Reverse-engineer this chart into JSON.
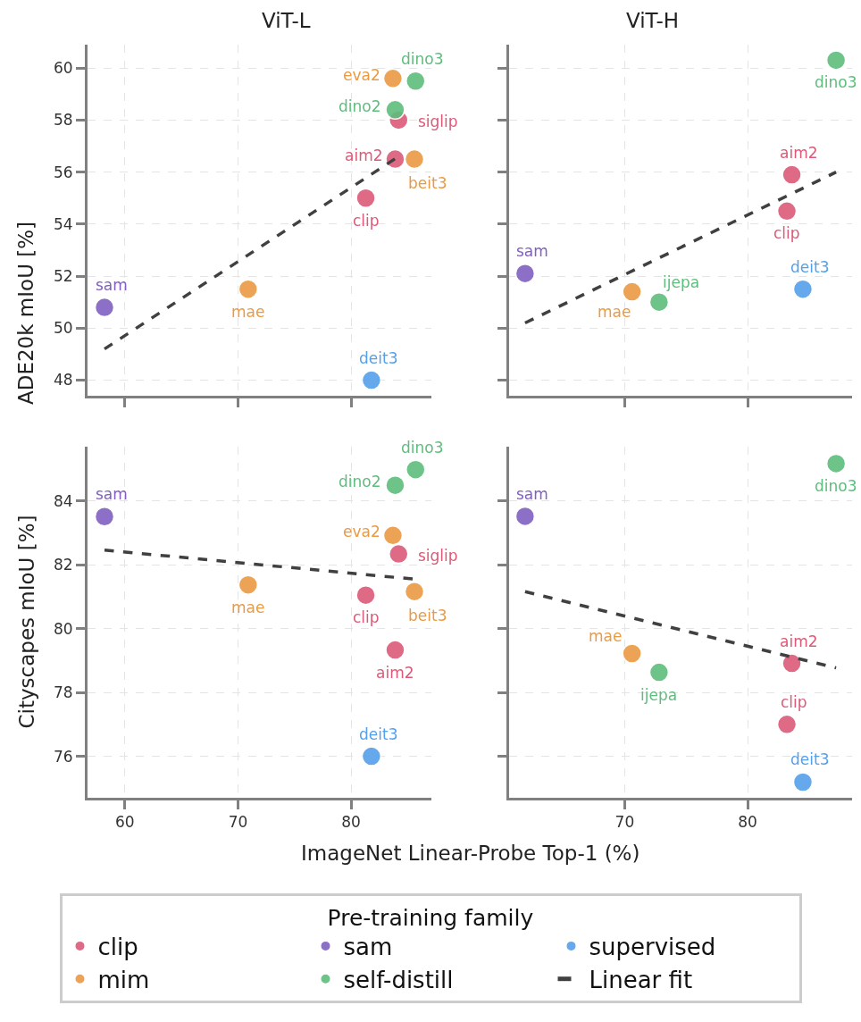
{
  "chart_data": [
    {
      "type": "scatter",
      "title": "ViT-L",
      "ylabel": "ADE20k mIoU [%]",
      "legend_title": "Pre-training family",
      "legend": "bottom",
      "grid": true,
      "marker": "circle",
      "tick_labels": "y",
      "xlim": [
        56.7,
        87.1
      ],
      "xticks": [
        60,
        70,
        80
      ],
      "ylim": [
        47.4,
        60.9
      ],
      "yticks": [
        48,
        50,
        52,
        54,
        56,
        58,
        60
      ],
      "series": [
        {
          "name": "clip",
          "color": "#dc5a78",
          "x": [
            81.3,
            83.9,
            84.2
          ],
          "values": [
            55.0,
            56.5,
            58.0
          ]
        },
        {
          "name": "mim",
          "color": "#eb9a44",
          "x": [
            70.9,
            85.6,
            83.7
          ],
          "values": [
            51.5,
            56.5,
            59.6
          ]
        },
        {
          "name": "sam",
          "color": "#8060c0",
          "x": [
            58.2
          ],
          "values": [
            50.8
          ]
        },
        {
          "name": "self-distill",
          "color": "#5fbd7d",
          "x": [
            83.9,
            85.7
          ],
          "values": [
            58.4,
            59.5
          ]
        },
        {
          "name": "supervised",
          "color": "#55a0ea",
          "x": [
            81.8
          ],
          "values": [
            48.0
          ]
        },
        {
          "name": "Linear fit",
          "type": "line",
          "line_style": "dashed",
          "marker": "none",
          "color": "#404040",
          "x": [
            58.2,
            84.2
          ],
          "values": [
            49.2,
            56.6
          ]
        }
      ],
      "annotations": [
        {
          "text": "clip",
          "x": 81.3,
          "y": 55.0
        },
        {
          "text": "aim2",
          "x": 83.9,
          "y": 56.5
        },
        {
          "text": "siglip",
          "x": 84.2,
          "y": 58.0
        },
        {
          "text": "mae",
          "x": 70.9,
          "y": 51.5
        },
        {
          "text": "beit3",
          "x": 85.6,
          "y": 56.5
        },
        {
          "text": "eva2",
          "x": 83.7,
          "y": 59.6
        },
        {
          "text": "sam",
          "x": 58.2,
          "y": 50.8
        },
        {
          "text": "dino2",
          "x": 83.9,
          "y": 58.4
        },
        {
          "text": "dino3",
          "x": 85.7,
          "y": 59.5
        },
        {
          "text": "deit3",
          "x": 81.8,
          "y": 48.0
        }
      ]
    },
    {
      "type": "scatter",
      "title": "ViT-H",
      "grid": true,
      "marker": "circle",
      "tick_labels": false,
      "xlim": [
        60.6,
        88.5
      ],
      "xticks": [
        70,
        80
      ],
      "ylim": [
        47.4,
        60.9
      ],
      "yticks": [
        48,
        50,
        52,
        54,
        56,
        58,
        60
      ],
      "series": [
        {
          "color": "#dc5a78",
          "x": [
            83.2,
            83.6
          ],
          "values": [
            54.5,
            55.9
          ]
        },
        {
          "color": "#eb9a44",
          "x": [
            70.6
          ],
          "values": [
            51.4
          ]
        },
        {
          "color": "#8060c0",
          "x": [
            61.9
          ],
          "values": [
            52.1
          ]
        },
        {
          "color": "#5fbd7d",
          "x": [
            72.8,
            87.2
          ],
          "values": [
            51.0,
            60.3
          ]
        },
        {
          "color": "#55a0ea",
          "x": [
            84.5
          ],
          "values": [
            51.5
          ]
        },
        {
          "type": "line",
          "line_style": "dashed",
          "marker": "none",
          "color": "#404040",
          "x": [
            61.9,
            87.2
          ],
          "values": [
            50.2,
            56.0
          ]
        }
      ],
      "annotations": [
        {
          "text": "clip",
          "x": 83.2,
          "y": 54.5
        },
        {
          "text": "aim2",
          "x": 83.6,
          "y": 55.9
        },
        {
          "text": "mae",
          "x": 70.6,
          "y": 51.4
        },
        {
          "text": "sam",
          "x": 61.9,
          "y": 52.1
        },
        {
          "text": "ijepa",
          "x": 72.8,
          "y": 51.0
        },
        {
          "text": "dino3",
          "x": 87.2,
          "y": 60.3
        },
        {
          "text": "deit3",
          "x": 84.5,
          "y": 51.5
        }
      ]
    },
    {
      "type": "scatter",
      "ylabel": "Cityscapes mIoU [%]",
      "xlabel": "ImageNet Linear-Probe Top-1 (%)",
      "grid": true,
      "marker": "circle",
      "xlim": [
        56.7,
        87.1
      ],
      "xticks": [
        60,
        70,
        80
      ],
      "ylim": [
        74.7,
        85.7
      ],
      "yticks": [
        76,
        78,
        80,
        82,
        84
      ],
      "series": [
        {
          "color": "#dc5a78",
          "x": [
            81.3,
            83.9,
            84.2
          ],
          "values": [
            81.05,
            79.33,
            82.34
          ]
        },
        {
          "color": "#eb9a44",
          "x": [
            70.9,
            85.6,
            83.7
          ],
          "values": [
            81.37,
            81.16,
            82.92
          ]
        },
        {
          "color": "#8060c0",
          "x": [
            58.2
          ],
          "values": [
            83.51
          ]
        },
        {
          "color": "#5fbd7d",
          "x": [
            83.9,
            85.7
          ],
          "values": [
            84.49,
            84.98
          ]
        },
        {
          "color": "#55a0ea",
          "x": [
            81.8
          ],
          "values": [
            76.0
          ]
        },
        {
          "type": "line",
          "line_style": "dashed",
          "marker": "none",
          "color": "#404040",
          "x": [
            58.2,
            85.6
          ],
          "values": [
            82.46,
            81.55
          ]
        }
      ],
      "annotations": [
        {
          "text": "clip",
          "x": 81.3,
          "y": 81.05
        },
        {
          "text": "aim2",
          "x": 83.9,
          "y": 79.33
        },
        {
          "text": "siglip",
          "x": 84.2,
          "y": 82.34
        },
        {
          "text": "mae",
          "x": 70.9,
          "y": 81.37
        },
        {
          "text": "beit3",
          "x": 85.6,
          "y": 81.16
        },
        {
          "text": "eva2",
          "x": 83.7,
          "y": 82.92
        },
        {
          "text": "sam",
          "x": 58.2,
          "y": 83.51
        },
        {
          "text": "dino2",
          "x": 83.9,
          "y": 84.49
        },
        {
          "text": "dino3",
          "x": 85.7,
          "y": 84.98
        },
        {
          "text": "deit3",
          "x": 81.8,
          "y": 76.0
        }
      ]
    },
    {
      "type": "scatter",
      "grid": true,
      "marker": "circle",
      "tick_labels": "x",
      "xlim": [
        60.6,
        88.5
      ],
      "xticks": [
        70,
        80
      ],
      "ylim": [
        74.7,
        85.7
      ],
      "yticks": [
        76,
        78,
        80,
        82,
        84
      ],
      "series": [
        {
          "color": "#dc5a78",
          "x": [
            83.2,
            83.6
          ],
          "values": [
            77.0,
            78.91
          ]
        },
        {
          "color": "#eb9a44",
          "x": [
            70.6
          ],
          "values": [
            79.22
          ]
        },
        {
          "color": "#8060c0",
          "x": [
            61.9
          ],
          "values": [
            83.52
          ]
        },
        {
          "color": "#5fbd7d",
          "x": [
            72.8,
            87.2
          ],
          "values": [
            78.63,
            85.17
          ]
        },
        {
          "color": "#55a0ea",
          "x": [
            84.5
          ],
          "values": [
            75.19
          ]
        },
        {
          "type": "line",
          "line_style": "dashed",
          "marker": "none",
          "color": "#404040",
          "x": [
            61.9,
            87.2
          ],
          "values": [
            81.16,
            78.77
          ]
        }
      ],
      "annotations": [
        {
          "text": "clip",
          "x": 83.2,
          "y": 77.0
        },
        {
          "text": "aim2",
          "x": 83.6,
          "y": 78.91
        },
        {
          "text": "mae",
          "x": 70.6,
          "y": 79.22
        },
        {
          "text": "sam",
          "x": 61.9,
          "y": 83.52
        },
        {
          "text": "ijepa",
          "x": 72.8,
          "y": 78.63
        },
        {
          "text": "dino3",
          "x": 87.2,
          "y": 85.17
        },
        {
          "text": "deit3",
          "x": 84.5,
          "y": 75.19
        }
      ]
    }
  ]
}
